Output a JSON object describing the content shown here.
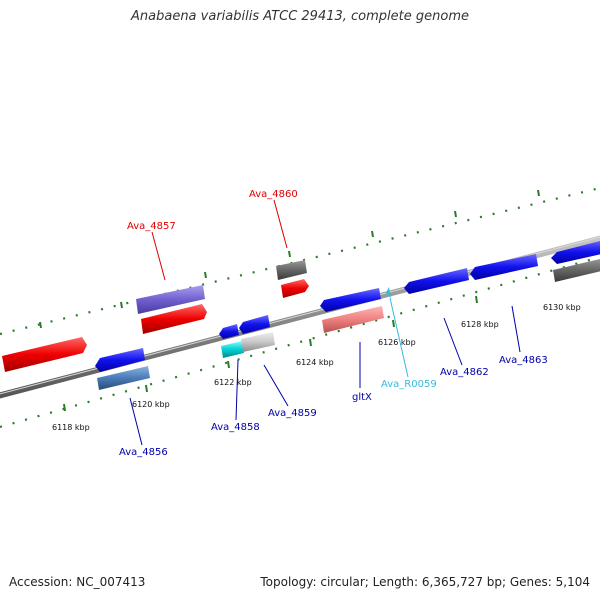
{
  "title": "Anabaena variabilis ATCC 29413, complete genome",
  "footer": {
    "accession": "Accession: NC_007413",
    "summary": "Topology: circular; Length: 6,365,727 bp; Genes: 5,104"
  },
  "colors": {
    "backbone": "#8a8a8a",
    "tick_green": "#2d7a2d",
    "label_red": "#dd0000",
    "label_blue": "#0000aa",
    "label_cyan": "#33bbdd"
  },
  "kbp_ticks": [
    "6118 kbp",
    "6120 kbp",
    "6122 kbp",
    "6124 kbp",
    "6126 kbp",
    "6128 kbp",
    "6130 kbp"
  ],
  "gene_labels": [
    "Ava_4857",
    "Ava_4860",
    "Ava_4856",
    "Ava_4858",
    "Ava_4859",
    "gltX",
    "Ava_R0059",
    "Ava_4862",
    "Ava_4863"
  ]
}
